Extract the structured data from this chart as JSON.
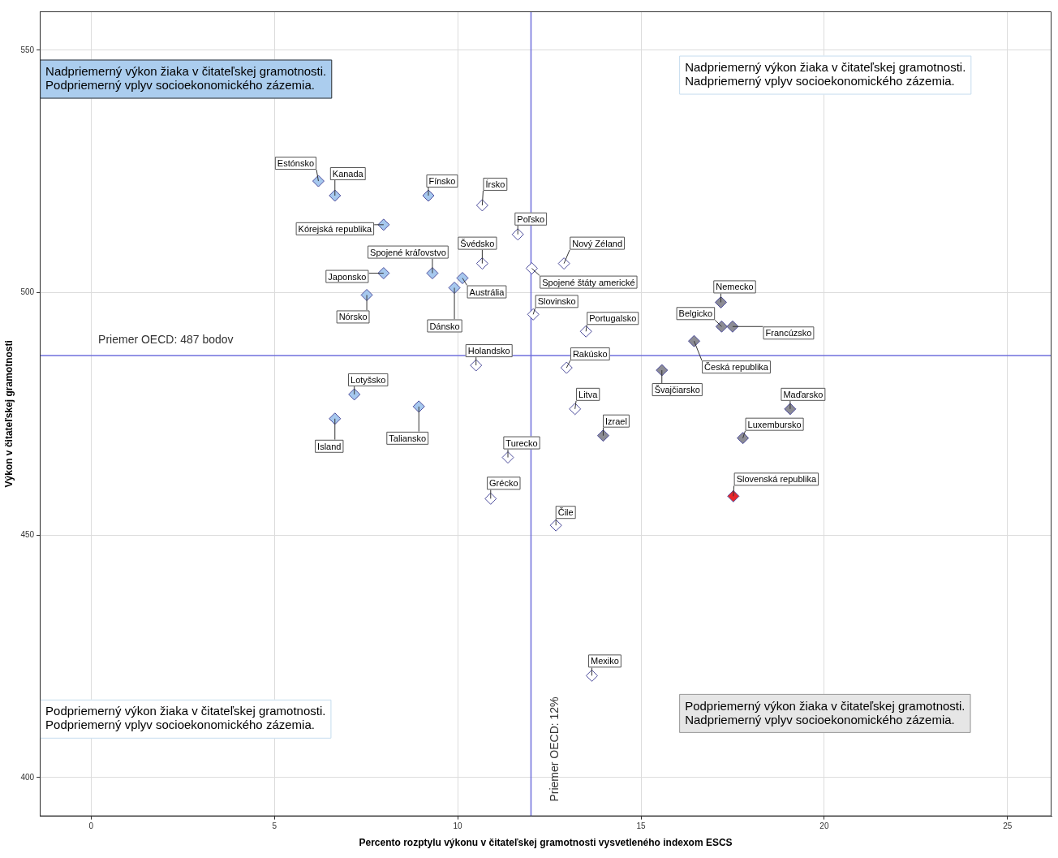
{
  "chart_data": {
    "type": "scatter",
    "xlabel": "Percento rozptylu výkonu v čitateľskej gramotnosti vysvetleného indexom ESCS",
    "ylabel": "Výkon v čitateľskej gramotnosti",
    "xlim": [
      -1.4,
      26.2
    ],
    "xticks": [
      0,
      5,
      10,
      15,
      20,
      25
    ],
    "ylim": [
      392,
      558
    ],
    "yticks": [
      400,
      450,
      500,
      550
    ],
    "grid": true,
    "marker": "diamond",
    "legend": false,
    "x": [
      6.2,
      6.65,
      9.2,
      10.67,
      7.98,
      11.64,
      10.67,
      12.02,
      12.9,
      9.31,
      7.98,
      10.13,
      9.91,
      7.52,
      12.06,
      13.5,
      10.5,
      12.97,
      17.18,
      17.2,
      17.5,
      16.45,
      15.57,
      19.07,
      17.78,
      17.52,
      13.97,
      13.2,
      7.18,
      6.65,
      8.94,
      11.37,
      10.9,
      12.68,
      13.66
    ],
    "values": [
      523,
      520,
      520,
      518,
      514,
      512,
      506,
      505,
      506,
      504,
      504,
      503,
      501,
      499.5,
      495.5,
      492,
      485,
      484.5,
      498,
      493,
      493,
      490,
      484,
      476,
      470,
      458,
      470.5,
      476,
      479,
      474,
      476.5,
      466,
      457.5,
      452,
      421
    ],
    "colors": [
      "#a6c8ee",
      "#a6c8ee",
      "#a6c8ee",
      "#ffffff",
      "#a6c8ee",
      "#ffffff",
      "#ffffff",
      "#ffffff",
      "#ffffff",
      "#a6c8ee",
      "#a6c8ee",
      "#a6c8ee",
      "#a6c8ee",
      "#a6c8ee",
      "#ffffff",
      "#ffffff",
      "#ffffff",
      "#ffffff",
      "#8c8c94",
      "#8c8c94",
      "#8c8c94",
      "#8c8c94",
      "#8c8c94",
      "#8c8c94",
      "#8c8c94",
      "#e8262c",
      "#8c8c94",
      "#ffffff",
      "#a6c8ee",
      "#a6c8ee",
      "#a6c8ee",
      "#ffffff",
      "#ffffff",
      "#ffffff",
      "#ffffff"
    ],
    "ref_lines": [
      {
        "axis": "x",
        "value": 12,
        "label": "Priemer OECD: 12%",
        "color": "#6f6fdc"
      },
      {
        "axis": "y",
        "value": 487,
        "label": "Priemer OECD: 487 bodov",
        "color": "#6f6fdc"
      }
    ],
    "annotations": [
      "Nadpriemerný výkon žiaka v čitateľskej gramotnosti.\nPodpriemerný vplyv socioekonomického zázemia.",
      "Nadpriemerný výkon žiaka v čitateľskej gramotnosti.\nNadpriemerný vplyv socioekonomického zázemia.",
      "Podpriemerný výkon žiaka v čitateľskej gramotnosti.\nPodpriemerný vplyv socioekonomického zázemia.",
      "Podpriemerný výkon žiaka v čitateľskej gramotnosti.\nNadpriemerný vplyv socioekonomického zázemia.",
      {
        "text": "Estónsko",
        "x": 6.2,
        "y": 523
      },
      {
        "text": "Kanada",
        "x": 6.65,
        "y": 520
      },
      {
        "text": "Fínsko",
        "x": 9.2,
        "y": 520
      },
      {
        "text": "Írsko",
        "x": 10.67,
        "y": 518
      },
      {
        "text": "Kórejská republika",
        "x": 7.98,
        "y": 514
      },
      {
        "text": "Poľsko",
        "x": 11.64,
        "y": 512
      },
      {
        "text": "Švédsko",
        "x": 10.67,
        "y": 506
      },
      {
        "text": "Spojené štáty americké",
        "x": 12.02,
        "y": 505
      },
      {
        "text": "Nový Zéland",
        "x": 12.9,
        "y": 506
      },
      {
        "text": "Spojené kráľovstvo",
        "x": 9.31,
        "y": 504
      },
      {
        "text": "Japonsko",
        "x": 7.98,
        "y": 504
      },
      {
        "text": "Austrália",
        "x": 10.13,
        "y": 503
      },
      {
        "text": "Dánsko",
        "x": 9.91,
        "y": 501
      },
      {
        "text": "Nórsko",
        "x": 7.52,
        "y": 499.5
      },
      {
        "text": "Slovinsko",
        "x": 12.06,
        "y": 495.5
      },
      {
        "text": "Portugalsko",
        "x": 13.5,
        "y": 492
      },
      {
        "text": "Holandsko",
        "x": 10.5,
        "y": 485
      },
      {
        "text": "Rakúsko",
        "x": 12.97,
        "y": 484.5
      },
      {
        "text": "Nemecko",
        "x": 17.18,
        "y": 498
      },
      {
        "text": "Belgicko",
        "x": 17.2,
        "y": 493
      },
      {
        "text": "Francúzsko",
        "x": 17.5,
        "y": 493
      },
      {
        "text": "Česká republika",
        "x": 16.45,
        "y": 490
      },
      {
        "text": "Švajčiarsko",
        "x": 15.57,
        "y": 484
      },
      {
        "text": "Maďarsko",
        "x": 19.07,
        "y": 476
      },
      {
        "text": "Luxembursko",
        "x": 17.78,
        "y": 470
      },
      {
        "text": "Slovenská republika",
        "x": 17.52,
        "y": 458
      },
      {
        "text": "Izrael",
        "x": 13.97,
        "y": 470.5
      },
      {
        "text": "Litva",
        "x": 13.2,
        "y": 476
      },
      {
        "text": "Lotyšsko",
        "x": 7.18,
        "y": 479
      },
      {
        "text": "Island",
        "x": 6.65,
        "y": 474
      },
      {
        "text": "Taliansko",
        "x": 8.94,
        "y": 476.5
      },
      {
        "text": "Turecko",
        "x": 11.37,
        "y": 466
      },
      {
        "text": "Grécko",
        "x": 10.9,
        "y": 457.5
      },
      {
        "text": "Čile",
        "x": 12.68,
        "y": 452
      },
      {
        "text": "Mexiko",
        "x": 13.66,
        "y": 421
      }
    ]
  }
}
